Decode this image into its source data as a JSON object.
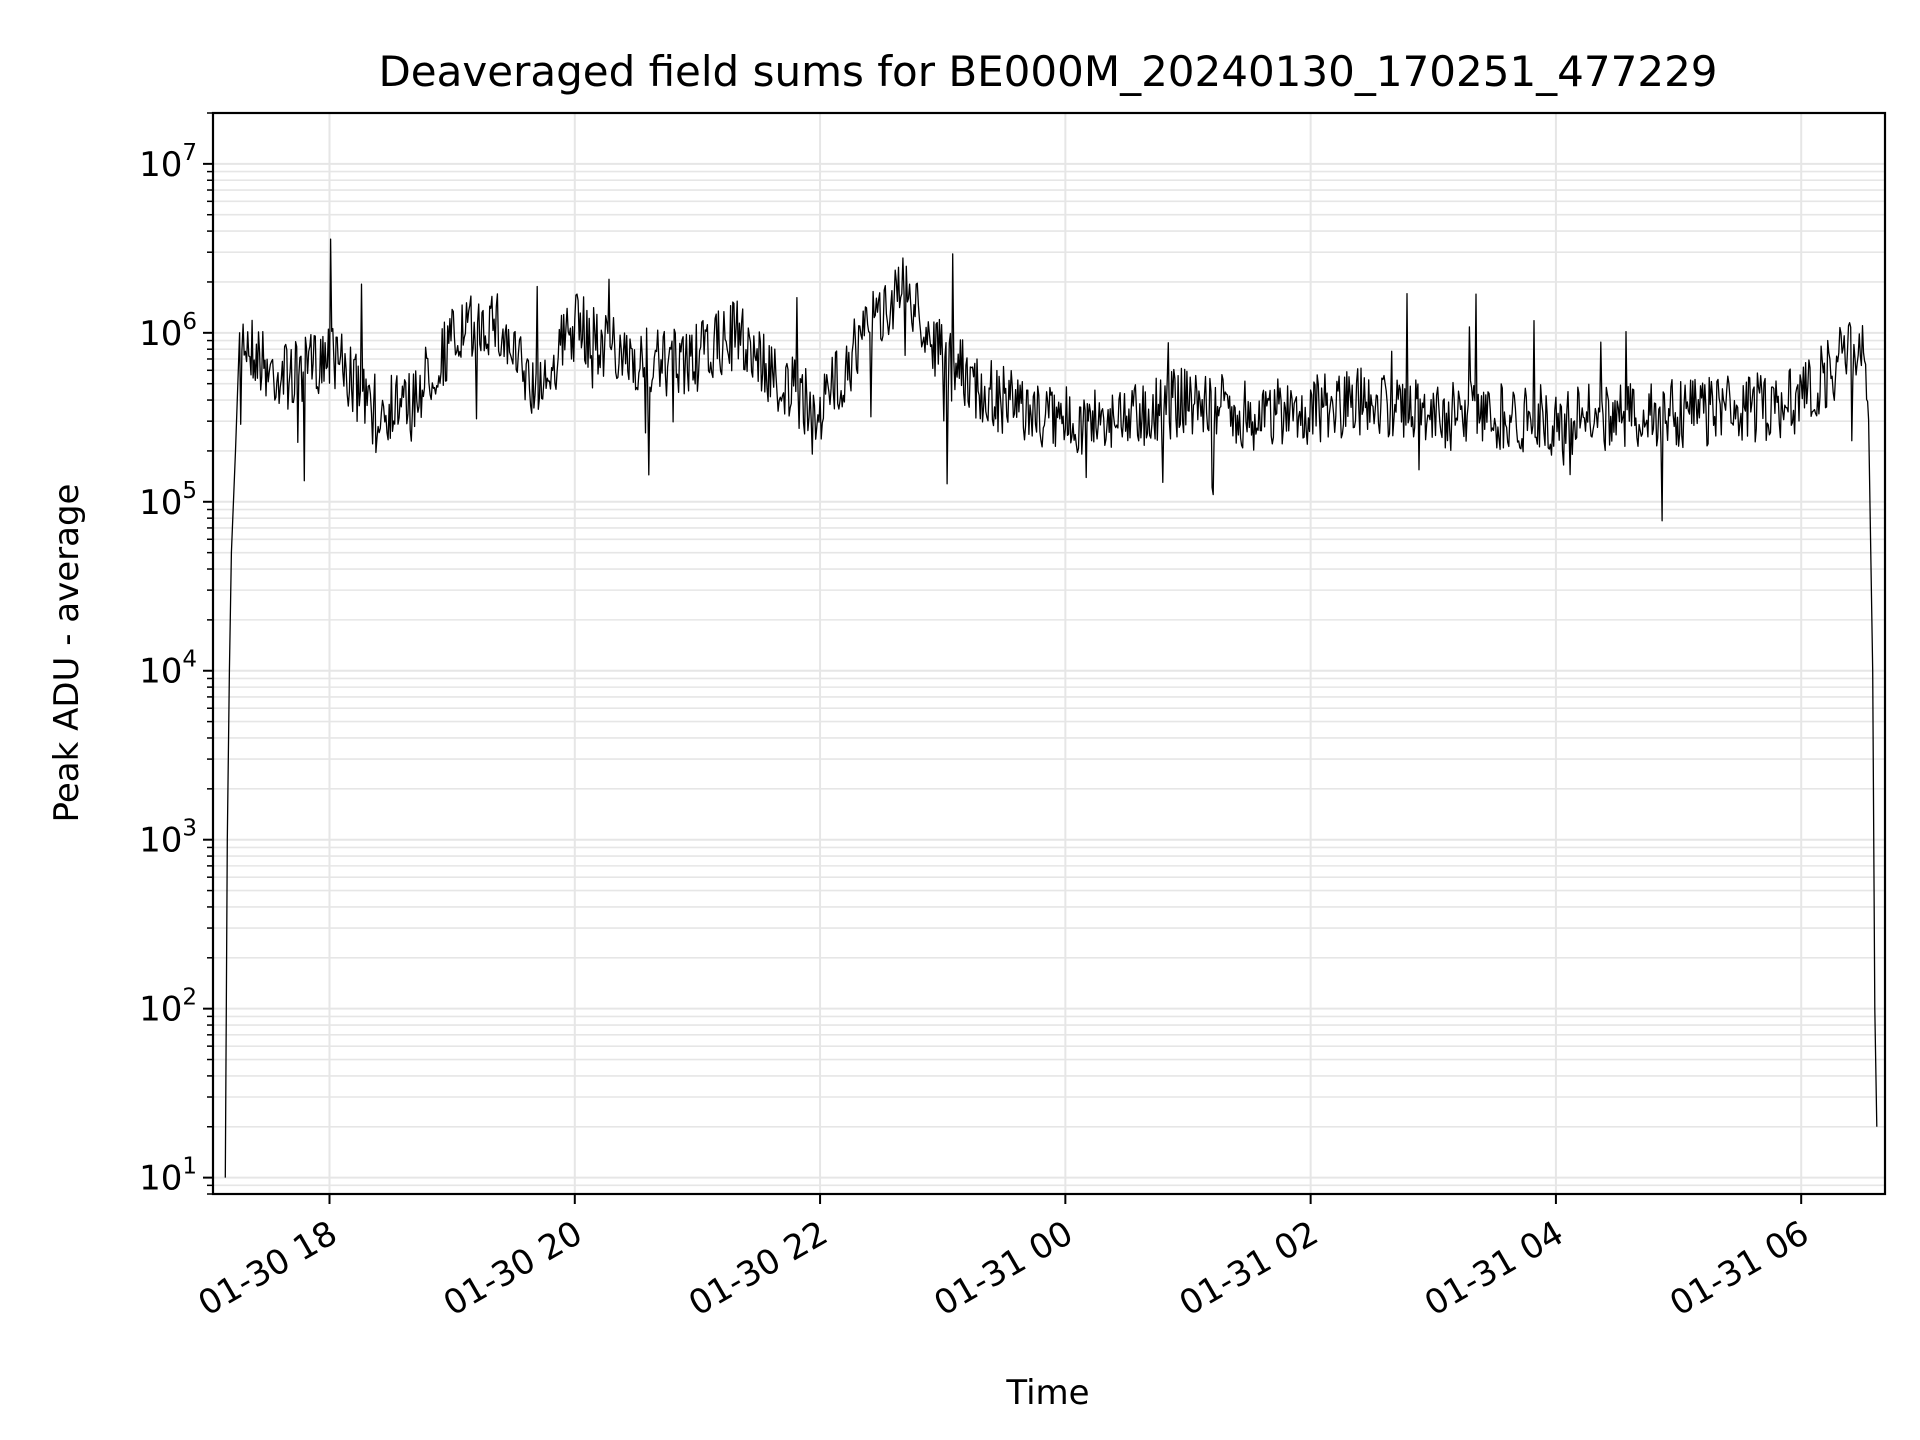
{
  "chart_data": {
    "type": "line",
    "title": "Deaveraged field sums for BE000M_20240130_170251_477229",
    "xlabel": "Time",
    "ylabel": "Peak ADU - average",
    "yscale": "log",
    "ylim": [
      8,
      20000000
    ],
    "y_ticks": [
      {
        "base": "10",
        "exp": "1",
        "value": 10
      },
      {
        "base": "10",
        "exp": "2",
        "value": 100
      },
      {
        "base": "10",
        "exp": "3",
        "value": 1000
      },
      {
        "base": "10",
        "exp": "4",
        "value": 10000
      },
      {
        "base": "10",
        "exp": "5",
        "value": 100000
      },
      {
        "base": "10",
        "exp": "6",
        "value": 1000000
      },
      {
        "base": "10",
        "exp": "7",
        "value": 10000000
      }
    ],
    "xlim": [
      "2024-01-30 17:03",
      "2024-01-31 06:41"
    ],
    "x_ticks": [
      {
        "label": "01-30 18",
        "value": "2024-01-30 18:00"
      },
      {
        "label": "01-30 20",
        "value": "2024-01-30 20:00"
      },
      {
        "label": "01-30 22",
        "value": "2024-01-30 22:00"
      },
      {
        "label": "01-31 00",
        "value": "2024-01-31 00:00"
      },
      {
        "label": "01-31 02",
        "value": "2024-01-31 02:00"
      },
      {
        "label": "01-31 04",
        "value": "2024-01-31 04:00"
      },
      {
        "label": "01-31 06",
        "value": "2024-01-31 06:00"
      }
    ],
    "grid": true,
    "grid_minor": true,
    "line_color": "#000000",
    "grid_color": "#e6e6e6",
    "series": [
      {
        "x": [
          "2024-01-30 17:09",
          "2024-01-30 17:10",
          "2024-01-30 17:11",
          "2024-01-30 17:12",
          "2024-01-30 17:14",
          "2024-01-30 17:16",
          "2024-01-30 17:20",
          "2024-01-30 17:30",
          "2024-01-30 17:45",
          "2024-01-30 18:00",
          "2024-01-30 18:20",
          "2024-01-30 18:40",
          "2024-01-30 19:00",
          "2024-01-30 19:20",
          "2024-01-30 19:40",
          "2024-01-30 20:00",
          "2024-01-30 20:20",
          "2024-01-30 20:40",
          "2024-01-30 21:00",
          "2024-01-30 21:20",
          "2024-01-30 21:40",
          "2024-01-30 22:00",
          "2024-01-30 22:20",
          "2024-01-30 22:40",
          "2024-01-30 23:00",
          "2024-01-30 23:20",
          "2024-01-30 23:40",
          "2024-01-31 00:00",
          "2024-01-31 00:30",
          "2024-01-31 01:00",
          "2024-01-31 01:30",
          "2024-01-31 02:00",
          "2024-01-31 02:30",
          "2024-01-31 03:00",
          "2024-01-31 03:30",
          "2024-01-31 04:00",
          "2024-01-31 04:30",
          "2024-01-31 05:00",
          "2024-01-31 05:30",
          "2024-01-31 06:00",
          "2024-01-31 06:20",
          "2024-01-31 06:30",
          "2024-01-31 06:33",
          "2024-01-31 06:35",
          "2024-01-31 06:36",
          "2024-01-31 06:37"
        ],
        "y": [
          10,
          1000,
          10000,
          50000,
          200000,
          1000000,
          900000,
          600000,
          550000,
          800000,
          350000,
          400000,
          900000,
          1200000,
          450000,
          1100000,
          800000,
          650000,
          700000,
          1000000,
          500000,
          350000,
          900000,
          2000000,
          700000,
          450000,
          350000,
          300000,
          320000,
          400000,
          320000,
          350000,
          400000,
          320000,
          330000,
          300000,
          320000,
          330000,
          350000,
          400000,
          700000,
          900000,
          300000,
          10000,
          100,
          20
        ]
      }
    ],
    "annotations": []
  }
}
